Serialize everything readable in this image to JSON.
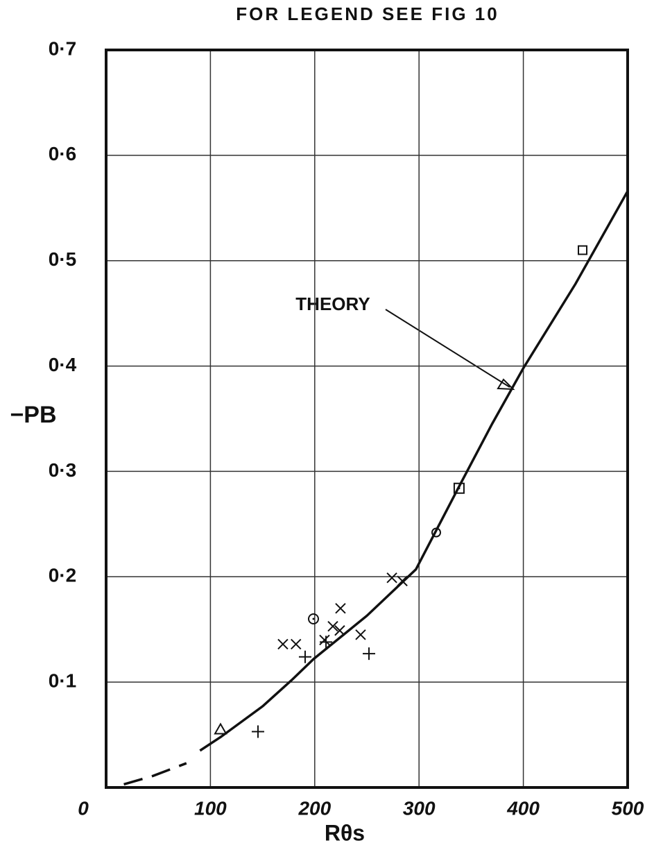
{
  "chart_data": {
    "type": "scatter",
    "title": "FOR LEGEND SEE FIG 10",
    "x_label": "Rθs",
    "y_label": "−PB",
    "annotation": "THEORY",
    "xlim": [
      0,
      500
    ],
    "ylim": [
      0,
      0.7
    ],
    "xticks": [
      0,
      100,
      200,
      300,
      400,
      500
    ],
    "yticks": [
      {
        "value": 0.1,
        "label": "0·1"
      },
      {
        "value": 0.2,
        "label": "0·2"
      },
      {
        "value": 0.3,
        "label": "0·3"
      },
      {
        "value": 0.4,
        "label": "0·4"
      },
      {
        "value": 0.5,
        "label": "0·5"
      },
      {
        "value": 0.6,
        "label": "0·6"
      },
      {
        "value": 0.7,
        "label": "0·7"
      }
    ],
    "grid": true,
    "color": "#111111",
    "lines": [
      {
        "style": "dashed",
        "x": [
          17,
          45,
          77
        ],
        "values": [
          0.003,
          0.011,
          0.023
        ]
      },
      {
        "style": "solid",
        "x": [
          90,
          110,
          150,
          178,
          199,
          250,
          297,
          337,
          370,
          400,
          450,
          500
        ],
        "values": [
          0.035,
          0.048,
          0.077,
          0.102,
          0.122,
          0.163,
          0.207,
          0.283,
          0.345,
          0.398,
          0.478,
          0.566
        ]
      }
    ],
    "series": [
      {
        "marker": "cross",
        "x": [
          169.5,
          182,
          209.4,
          217.4,
          224.7,
          224,
          244,
          274,
          284
        ],
        "values": [
          0.136,
          0.136,
          0.14,
          0.153,
          0.17,
          0.149,
          0.145,
          0.199,
          0.196
        ]
      },
      {
        "marker": "plus",
        "x": [
          190.8,
          210.8,
          252,
          145.6
        ],
        "values": [
          0.124,
          0.138,
          0.127,
          0.053
        ]
      },
      {
        "marker": "circle",
        "x": [
          316.5
        ],
        "values": [
          0.242
        ]
      },
      {
        "marker": "dotted-circle",
        "x": [
          198.8
        ],
        "values": [
          0.16
        ]
      },
      {
        "marker": "square",
        "x": [
          456.8
        ],
        "values": [
          0.51
        ]
      },
      {
        "marker": "dotted-square",
        "x": [
          338.4
        ],
        "values": [
          0.284
        ]
      },
      {
        "marker": "triangle",
        "x": [
          109.7
        ],
        "values": [
          0.055
        ]
      }
    ]
  }
}
